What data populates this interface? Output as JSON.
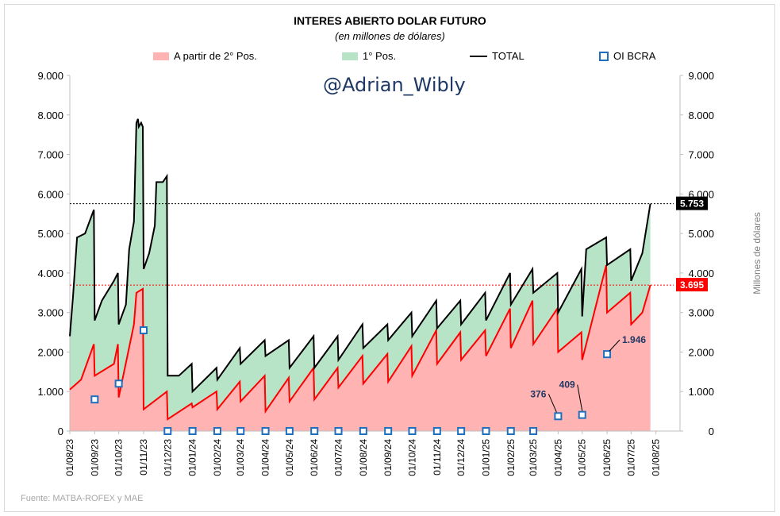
{
  "chart_data": {
    "type": "area",
    "title": "INTERES ABIERTO DOLAR FUTURO",
    "subtitle": "(en millones de dólares)",
    "ylabel_right": "Millones de dólares",
    "source": "Fuente: MATBA-ROFEX y MAE",
    "watermark": "@Adrian_Wibly",
    "ylim": [
      0,
      9000
    ],
    "y_ticks": [
      "0",
      "1.000",
      "2.000",
      "3.000",
      "4.000",
      "5.000",
      "6.000",
      "7.000",
      "8.000",
      "9.000"
    ],
    "x_ticks": [
      "01/08/23",
      "01/09/23",
      "01/10/23",
      "01/11/23",
      "01/12/23",
      "01/01/24",
      "01/02/24",
      "01/03/24",
      "01/04/24",
      "01/05/24",
      "01/06/24",
      "01/07/24",
      "01/08/24",
      "01/09/24",
      "01/10/24",
      "01/11/24",
      "01/12/24",
      "01/01/25",
      "01/02/25",
      "01/03/25",
      "01/04/25",
      "01/05/25",
      "01/06/25",
      "01/07/25",
      "01/08/25"
    ],
    "legend": {
      "second": "A partir de 2° Pos.",
      "first": "1° Pos.",
      "total": "TOTAL",
      "bcra": "OI BCRA"
    },
    "colors": {
      "second": "#ffb3b3",
      "second_line": "#ff0000",
      "first": "#b7e4c7",
      "total": "#000000",
      "bcra": "#1f6fbf",
      "grid": "#d9d9d9"
    },
    "series": [
      {
        "name": "TOTAL",
        "points": [
          [
            "2023-08-01",
            2400
          ],
          [
            "2023-08-05",
            3400
          ],
          [
            "2023-08-10",
            4900
          ],
          [
            "2023-08-20",
            5000
          ],
          [
            "2023-08-31",
            5600
          ],
          [
            "2023-09-01",
            2800
          ],
          [
            "2023-09-10",
            3300
          ],
          [
            "2023-09-25",
            3800
          ],
          [
            "2023-09-30",
            4000
          ],
          [
            "2023-10-01",
            2700
          ],
          [
            "2023-10-10",
            3200
          ],
          [
            "2023-10-14",
            4600
          ],
          [
            "2023-10-20",
            5300
          ],
          [
            "2023-10-23",
            7800
          ],
          [
            "2023-10-25",
            7900
          ],
          [
            "2023-10-26",
            7700
          ],
          [
            "2023-10-29",
            7800
          ],
          [
            "2023-10-31",
            7700
          ],
          [
            "2023-11-01",
            4100
          ],
          [
            "2023-11-08",
            4500
          ],
          [
            "2023-11-15",
            5200
          ],
          [
            "2023-11-17",
            6300
          ],
          [
            "2023-11-25",
            6300
          ],
          [
            "2023-11-30",
            6450
          ],
          [
            "2023-12-01",
            1400
          ],
          [
            "2023-12-15",
            1400
          ],
          [
            "2023-12-31",
            1700
          ],
          [
            "2024-01-01",
            1000
          ],
          [
            "2024-01-31",
            1600
          ],
          [
            "2024-02-01",
            1300
          ],
          [
            "2024-02-29",
            2100
          ],
          [
            "2024-03-01",
            1700
          ],
          [
            "2024-03-31",
            2300
          ],
          [
            "2024-04-01",
            1900
          ],
          [
            "2024-04-30",
            2300
          ],
          [
            "2024-05-01",
            1600
          ],
          [
            "2024-05-31",
            2400
          ],
          [
            "2024-06-01",
            1600
          ],
          [
            "2024-06-30",
            2400
          ],
          [
            "2024-07-01",
            1800
          ],
          [
            "2024-07-31",
            2700
          ],
          [
            "2024-08-01",
            2100
          ],
          [
            "2024-08-31",
            2700
          ],
          [
            "2024-09-01",
            2300
          ],
          [
            "2024-09-30",
            3000
          ],
          [
            "2024-10-01",
            2400
          ],
          [
            "2024-10-31",
            3300
          ],
          [
            "2024-11-01",
            2600
          ],
          [
            "2024-11-30",
            3300
          ],
          [
            "2024-12-01",
            2700
          ],
          [
            "2024-12-31",
            3500
          ],
          [
            "2025-01-01",
            2800
          ],
          [
            "2025-01-31",
            4000
          ],
          [
            "2025-02-01",
            3200
          ],
          [
            "2025-02-28",
            4100
          ],
          [
            "2025-03-01",
            3500
          ],
          [
            "2025-03-31",
            4000
          ],
          [
            "2025-04-01",
            3000
          ],
          [
            "2025-04-30",
            4100
          ],
          [
            "2025-05-01",
            2900
          ],
          [
            "2025-05-06",
            4600
          ],
          [
            "2025-05-31",
            4900
          ],
          [
            "2025-06-01",
            4200
          ],
          [
            "2025-06-30",
            4600
          ],
          [
            "2025-07-01",
            3800
          ],
          [
            "2025-07-15",
            4500
          ],
          [
            "2025-07-25",
            5753
          ]
        ]
      },
      {
        "name": "A partir de 2° Pos.",
        "points": [
          [
            "2023-08-01",
            1050
          ],
          [
            "2023-08-15",
            1300
          ],
          [
            "2023-08-31",
            2200
          ],
          [
            "2023-09-01",
            1400
          ],
          [
            "2023-09-25",
            1700
          ],
          [
            "2023-09-30",
            2200
          ],
          [
            "2023-10-01",
            850
          ],
          [
            "2023-10-20",
            2700
          ],
          [
            "2023-10-23",
            3500
          ],
          [
            "2023-10-31",
            3600
          ],
          [
            "2023-11-01",
            550
          ],
          [
            "2023-11-30",
            1000
          ],
          [
            "2023-12-01",
            300
          ],
          [
            "2023-12-31",
            700
          ],
          [
            "2024-01-01",
            600
          ],
          [
            "2024-01-31",
            1000
          ],
          [
            "2024-02-01",
            550
          ],
          [
            "2024-02-29",
            1250
          ],
          [
            "2024-03-01",
            750
          ],
          [
            "2024-03-31",
            1400
          ],
          [
            "2024-04-01",
            500
          ],
          [
            "2024-04-30",
            1350
          ],
          [
            "2024-05-01",
            750
          ],
          [
            "2024-05-31",
            1600
          ],
          [
            "2024-06-01",
            800
          ],
          [
            "2024-06-30",
            1600
          ],
          [
            "2024-07-01",
            1100
          ],
          [
            "2024-07-31",
            1900
          ],
          [
            "2024-08-01",
            1200
          ],
          [
            "2024-08-31",
            1950
          ],
          [
            "2024-09-01",
            1250
          ],
          [
            "2024-09-30",
            2150
          ],
          [
            "2024-10-01",
            1400
          ],
          [
            "2024-10-31",
            2550
          ],
          [
            "2024-11-01",
            1700
          ],
          [
            "2024-11-30",
            2500
          ],
          [
            "2024-12-01",
            1800
          ],
          [
            "2024-12-31",
            2550
          ],
          [
            "2025-01-01",
            1900
          ],
          [
            "2025-01-31",
            3100
          ],
          [
            "2025-02-01",
            2100
          ],
          [
            "2025-02-28",
            3300
          ],
          [
            "2025-03-01",
            2200
          ],
          [
            "2025-03-31",
            3100
          ],
          [
            "2025-04-01",
            2000
          ],
          [
            "2025-04-30",
            2500
          ],
          [
            "2025-05-01",
            1800
          ],
          [
            "2025-05-31",
            4200
          ],
          [
            "2025-06-01",
            3000
          ],
          [
            "2025-06-30",
            3500
          ],
          [
            "2025-07-01",
            2700
          ],
          [
            "2025-07-15",
            3000
          ],
          [
            "2025-07-25",
            3695
          ]
        ]
      },
      {
        "name": "OI BCRA",
        "points": [
          [
            "2023-09-01",
            800
          ],
          [
            "2023-10-01",
            1200
          ],
          [
            "2023-11-01",
            2550
          ],
          [
            "2023-12-01",
            0
          ],
          [
            "2024-01-01",
            0
          ],
          [
            "2024-02-01",
            0
          ],
          [
            "2024-03-01",
            0
          ],
          [
            "2024-04-01",
            0
          ],
          [
            "2024-05-01",
            0
          ],
          [
            "2024-06-01",
            0
          ],
          [
            "2024-07-01",
            0
          ],
          [
            "2024-08-01",
            0
          ],
          [
            "2024-09-01",
            0
          ],
          [
            "2024-10-01",
            0
          ],
          [
            "2024-11-01",
            0
          ],
          [
            "2024-12-01",
            0
          ],
          [
            "2025-01-01",
            0
          ],
          [
            "2025-02-01",
            0
          ],
          [
            "2025-03-01",
            0
          ],
          [
            "2025-04-01",
            376
          ],
          [
            "2025-05-01",
            409
          ],
          [
            "2025-06-01",
            1946
          ]
        ]
      }
    ],
    "x_range": [
      "2023-08-01",
      "2025-08-31"
    ],
    "annotations": {
      "total_last": "5.753",
      "second_last": "3.695",
      "bcra_apr": "376",
      "bcra_may": "409",
      "bcra_jun": "1.946"
    },
    "reference_lines": {
      "total_last": 5753,
      "second_last": 3695
    }
  }
}
